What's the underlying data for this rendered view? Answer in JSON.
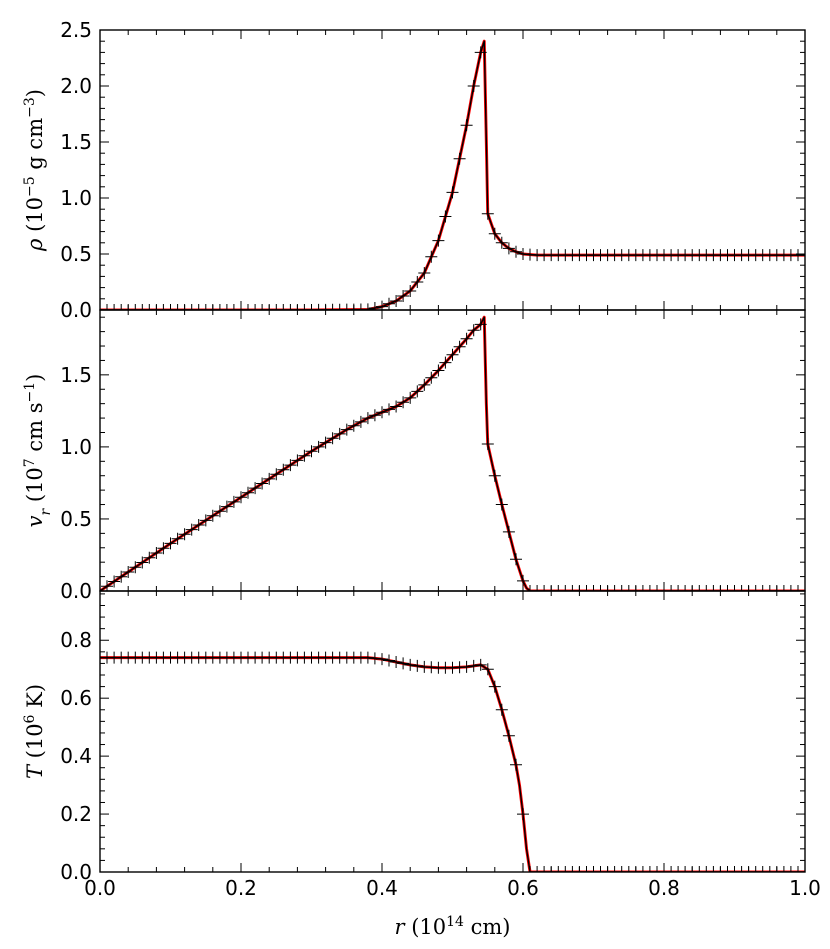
{
  "chart_data": {
    "type": "line",
    "shared_x": {
      "label_parts": [
        "r",
        " (10",
        "14",
        " cm)"
      ],
      "xlim": [
        0.0,
        1.0
      ],
      "ticks": [
        0.0,
        0.2,
        0.4,
        0.6,
        0.8,
        1.0
      ],
      "tick_labels": [
        "0.0",
        "0.2",
        "0.4",
        "0.6",
        "0.8",
        "1.0"
      ]
    },
    "panels": [
      {
        "id": "density",
        "ylabel_parts": [
          "ρ",
          " (10",
          "−5",
          " g cm",
          "−3",
          ")"
        ],
        "ylim": [
          0.0,
          2.5
        ],
        "ticks": [
          0.0,
          0.5,
          1.0,
          1.5,
          2.0,
          2.5
        ],
        "tick_labels": [
          "0.0",
          "0.5",
          "1.0",
          "1.5",
          "2.0",
          "2.5"
        ],
        "series": [
          {
            "style": "line",
            "color": "#ff0000",
            "x": [
              0.0,
              0.3,
              0.38,
              0.4,
              0.42,
              0.44,
              0.46,
              0.48,
              0.5,
              0.52,
              0.53,
              0.54,
              0.545,
              0.548,
              0.55,
              0.56,
              0.57,
              0.58,
              0.59,
              0.6,
              0.62,
              1.0
            ],
            "y": [
              0.0,
              0.0,
              0.005,
              0.03,
              0.08,
              0.17,
              0.33,
              0.62,
              1.05,
              1.65,
              2.0,
              2.3,
              2.4,
              1.5,
              0.86,
              0.68,
              0.6,
              0.55,
              0.52,
              0.5,
              0.49,
              0.49
            ]
          },
          {
            "style": "line",
            "color": "#000000",
            "x": [
              0.0,
              0.3,
              0.38,
              0.4,
              0.42,
              0.44,
              0.46,
              0.48,
              0.5,
              0.52,
              0.53,
              0.54,
              0.545,
              0.548,
              0.55,
              0.56,
              0.57,
              0.58,
              0.59,
              0.6,
              0.62,
              1.0
            ],
            "y": [
              0.0,
              0.0,
              0.005,
              0.03,
              0.08,
              0.17,
              0.33,
              0.62,
              1.05,
              1.65,
              2.0,
              2.3,
              2.4,
              1.5,
              0.86,
              0.68,
              0.6,
              0.55,
              0.52,
              0.5,
              0.49,
              0.49
            ]
          },
          {
            "style": "markers",
            "marker": "plus",
            "color": "#000000",
            "x": [
              0.0,
              0.3,
              0.38,
              0.4,
              0.42,
              0.44,
              0.46,
              0.48,
              0.5,
              0.52,
              0.53,
              0.54,
              0.545,
              0.548,
              0.55,
              0.56,
              0.57,
              0.58,
              0.59,
              0.6,
              0.62,
              1.0
            ],
            "y": [
              0.0,
              0.0,
              0.005,
              0.03,
              0.08,
              0.17,
              0.33,
              0.62,
              1.05,
              1.65,
              2.0,
              2.3,
              2.4,
              1.5,
              0.86,
              0.68,
              0.6,
              0.55,
              0.52,
              0.5,
              0.49,
              0.49
            ]
          }
        ]
      },
      {
        "id": "velocity",
        "ylabel_parts": [
          "v",
          "r",
          " (10",
          "7",
          " cm s",
          "−1",
          ")"
        ],
        "ylim": [
          0.0,
          1.95
        ],
        "ticks": [
          0.0,
          0.5,
          1.0,
          1.5
        ],
        "tick_labels": [
          "0.0",
          "0.5",
          "1.0",
          "1.5"
        ],
        "series": [
          {
            "style": "line",
            "color": "#ff0000",
            "x": [
              0.0,
              0.1,
              0.2,
              0.3,
              0.35,
              0.38,
              0.4,
              0.42,
              0.44,
              0.46,
              0.48,
              0.5,
              0.52,
              0.53,
              0.54,
              0.545,
              0.548,
              0.55,
              0.56,
              0.57,
              0.58,
              0.59,
              0.6,
              0.605,
              0.61,
              1.0
            ],
            "y": [
              0.0,
              0.33,
              0.65,
              0.97,
              1.12,
              1.2,
              1.24,
              1.28,
              1.34,
              1.43,
              1.53,
              1.64,
              1.75,
              1.81,
              1.85,
              1.9,
              1.3,
              1.02,
              0.8,
              0.6,
              0.41,
              0.22,
              0.07,
              0.02,
              0.0,
              0.0
            ]
          },
          {
            "style": "line",
            "color": "#000000",
            "x": [
              0.0,
              0.1,
              0.2,
              0.3,
              0.35,
              0.38,
              0.4,
              0.42,
              0.44,
              0.46,
              0.48,
              0.5,
              0.52,
              0.53,
              0.54,
              0.545,
              0.548,
              0.55,
              0.56,
              0.57,
              0.58,
              0.59,
              0.6,
              0.605,
              0.61,
              1.0
            ],
            "y": [
              0.0,
              0.33,
              0.65,
              0.97,
              1.12,
              1.2,
              1.24,
              1.28,
              1.34,
              1.43,
              1.53,
              1.64,
              1.75,
              1.81,
              1.85,
              1.9,
              1.3,
              1.02,
              0.8,
              0.6,
              0.41,
              0.22,
              0.07,
              0.02,
              0.0,
              0.0
            ]
          },
          {
            "style": "markers",
            "marker": "plus",
            "color": "#000000",
            "x": [
              0.0,
              0.1,
              0.2,
              0.3,
              0.35,
              0.38,
              0.4,
              0.42,
              0.44,
              0.46,
              0.48,
              0.5,
              0.52,
              0.53,
              0.54,
              0.545,
              0.548,
              0.55,
              0.56,
              0.57,
              0.58,
              0.59,
              0.6,
              0.605,
              0.61,
              1.0
            ],
            "y": [
              0.0,
              0.33,
              0.65,
              0.97,
              1.12,
              1.2,
              1.24,
              1.28,
              1.34,
              1.43,
              1.53,
              1.64,
              1.75,
              1.81,
              1.85,
              1.9,
              1.3,
              1.02,
              0.8,
              0.6,
              0.41,
              0.22,
              0.07,
              0.02,
              0.0,
              0.0
            ]
          }
        ]
      },
      {
        "id": "temperature",
        "ylabel_parts": [
          "T",
          " (10",
          "6",
          " K)"
        ],
        "ylim": [
          0.0,
          0.97
        ],
        "ticks": [
          0.0,
          0.2,
          0.4,
          0.6,
          0.8
        ],
        "tick_labels": [
          "0.0",
          "0.2",
          "0.4",
          "0.6",
          "0.8"
        ],
        "series": [
          {
            "style": "line",
            "color": "#ff0000",
            "x": [
              0.0,
              0.1,
              0.2,
              0.3,
              0.38,
              0.4,
              0.42,
              0.44,
              0.46,
              0.48,
              0.5,
              0.52,
              0.54,
              0.55,
              0.56,
              0.57,
              0.58,
              0.59,
              0.595,
              0.6,
              0.605,
              0.61,
              1.0
            ],
            "y": [
              0.74,
              0.74,
              0.74,
              0.74,
              0.74,
              0.735,
              0.725,
              0.715,
              0.708,
              0.705,
              0.705,
              0.708,
              0.715,
              0.7,
              0.64,
              0.56,
              0.47,
              0.37,
              0.3,
              0.2,
              0.08,
              0.0,
              0.0
            ]
          },
          {
            "style": "line",
            "color": "#000000",
            "x": [
              0.0,
              0.1,
              0.2,
              0.3,
              0.38,
              0.4,
              0.42,
              0.44,
              0.46,
              0.48,
              0.5,
              0.52,
              0.54,
              0.55,
              0.56,
              0.57,
              0.58,
              0.59,
              0.595,
              0.6,
              0.605,
              0.61,
              1.0
            ],
            "y": [
              0.74,
              0.74,
              0.74,
              0.74,
              0.74,
              0.735,
              0.725,
              0.715,
              0.708,
              0.705,
              0.705,
              0.708,
              0.715,
              0.7,
              0.64,
              0.56,
              0.47,
              0.37,
              0.3,
              0.2,
              0.08,
              0.0,
              0.0
            ]
          },
          {
            "style": "markers",
            "marker": "plus",
            "color": "#000000",
            "x": [
              0.0,
              0.1,
              0.2,
              0.3,
              0.38,
              0.4,
              0.42,
              0.44,
              0.46,
              0.48,
              0.5,
              0.52,
              0.54,
              0.55,
              0.56,
              0.57,
              0.58,
              0.59,
              0.595,
              0.6,
              0.605,
              0.61,
              1.0
            ],
            "y": [
              0.74,
              0.74,
              0.74,
              0.74,
              0.74,
              0.735,
              0.725,
              0.715,
              0.708,
              0.705,
              0.705,
              0.708,
              0.715,
              0.7,
              0.64,
              0.56,
              0.47,
              0.37,
              0.3,
              0.2,
              0.08,
              0.0,
              0.0
            ]
          }
        ]
      }
    ]
  }
}
